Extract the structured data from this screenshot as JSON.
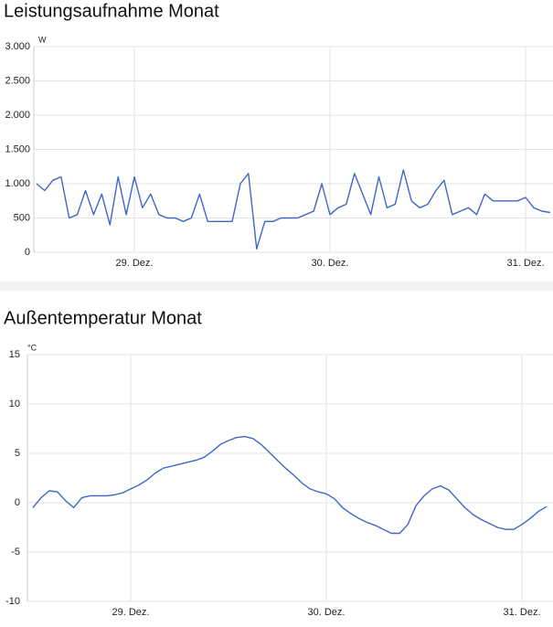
{
  "chart_data": [
    {
      "type": "line",
      "title": "Leistungsaufnahme Monat",
      "y_unit": "W",
      "color": "#3f66c8",
      "grid": true,
      "categories": [
        null,
        null,
        null,
        null,
        null,
        null,
        null,
        null,
        null,
        null,
        null,
        null,
        "29. Dez.",
        null,
        null,
        null,
        null,
        null,
        null,
        null,
        null,
        null,
        null,
        null,
        null,
        null,
        null,
        null,
        null,
        null,
        null,
        null,
        null,
        null,
        null,
        null,
        "30. Dez.",
        null,
        null,
        null,
        null,
        null,
        null,
        null,
        null,
        null,
        null,
        null,
        null,
        null,
        null,
        null,
        null,
        null,
        null,
        null,
        null,
        null,
        null,
        null,
        "31. Dez.",
        null,
        null,
        null
      ],
      "values": [
        1000,
        900,
        1050,
        1100,
        500,
        550,
        900,
        550,
        850,
        400,
        1100,
        550,
        1100,
        650,
        850,
        550,
        500,
        500,
        450,
        500,
        850,
        450,
        450,
        450,
        450,
        1000,
        1150,
        50,
        450,
        450,
        500,
        500,
        500,
        550,
        600,
        1000,
        550,
        650,
        700,
        1150,
        850,
        550,
        1100,
        650,
        700,
        1200,
        750,
        650,
        700,
        900,
        1050,
        550,
        600,
        650,
        550,
        850,
        750,
        750,
        750,
        750,
        800,
        650,
        600,
        580
      ],
      "ylim": [
        0,
        3000
      ],
      "yticks": [
        0,
        500,
        {
          "value": 1000,
          "label": "1.000"
        },
        {
          "value": 1500,
          "label": "1.500"
        },
        {
          "value": 2000,
          "label": "2.000"
        },
        {
          "value": 2500,
          "label": "2.500"
        },
        {
          "value": 3000,
          "label": "3.000"
        }
      ]
    },
    {
      "type": "line",
      "title": "Außentemperatur Monat",
      "y_unit": "°C",
      "color": "#3f66c8",
      "grid": true,
      "categories": [
        null,
        null,
        null,
        null,
        null,
        null,
        null,
        null,
        null,
        null,
        null,
        null,
        "29. Dez.",
        null,
        null,
        null,
        null,
        null,
        null,
        null,
        null,
        null,
        null,
        null,
        null,
        null,
        null,
        null,
        null,
        null,
        null,
        null,
        null,
        null,
        null,
        null,
        "30. Dez.",
        null,
        null,
        null,
        null,
        null,
        null,
        null,
        null,
        null,
        null,
        null,
        null,
        null,
        null,
        null,
        null,
        null,
        null,
        null,
        null,
        null,
        null,
        null,
        "31. Dez.",
        null,
        null,
        null
      ],
      "values": [
        -0.5,
        0.5,
        1.2,
        1.1,
        0.2,
        -0.5,
        0.5,
        0.7,
        0.7,
        0.7,
        0.8,
        1.0,
        1.4,
        1.8,
        2.3,
        3.0,
        3.5,
        3.7,
        3.9,
        4.1,
        4.3,
        4.6,
        5.2,
        5.9,
        6.3,
        6.6,
        6.7,
        6.5,
        5.9,
        5.1,
        4.3,
        3.5,
        2.8,
        2.0,
        1.4,
        1.1,
        0.9,
        0.4,
        -0.5,
        -1.1,
        -1.6,
        -2.0,
        -2.3,
        -2.7,
        -3.1,
        -3.1,
        -2.2,
        -0.3,
        0.7,
        1.4,
        1.7,
        1.3,
        0.4,
        -0.5,
        -1.2,
        -1.7,
        -2.1,
        -2.5,
        -2.7,
        -2.7,
        -2.2,
        -1.6,
        -0.9,
        -0.4
      ],
      "ylim": [
        -10,
        15
      ],
      "yticks": [
        -10,
        -5,
        0,
        5,
        10,
        15
      ]
    }
  ]
}
